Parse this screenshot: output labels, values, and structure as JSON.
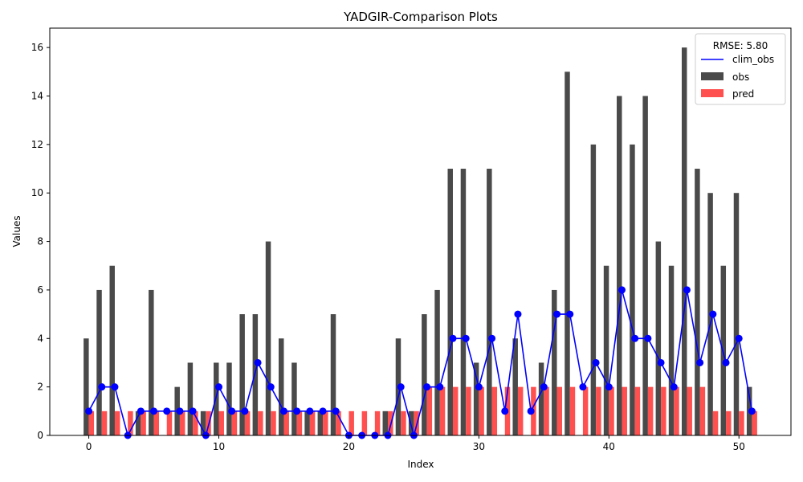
{
  "chart_data": {
    "type": "bar",
    "title": "YADGIR-Comparison Plots",
    "xlabel": "Index",
    "ylabel": "Values",
    "xlim": [
      -3,
      54
    ],
    "ylim": [
      0,
      16.8
    ],
    "x_ticks": [
      0,
      10,
      20,
      30,
      40,
      50
    ],
    "y_ticks": [
      0,
      2,
      4,
      6,
      8,
      10,
      12,
      14,
      16
    ],
    "legend": {
      "title": "RMSE: 5.80",
      "position": "top-right",
      "entries": [
        "clim_obs",
        "obs",
        "pred"
      ]
    },
    "colors": {
      "clim_obs": "#0000ff",
      "obs": "#4a4a4a",
      "pred": "#ff5050"
    },
    "x": [
      0,
      1,
      2,
      3,
      4,
      5,
      6,
      7,
      8,
      9,
      10,
      11,
      12,
      13,
      14,
      15,
      16,
      17,
      18,
      19,
      20,
      21,
      22,
      23,
      24,
      25,
      26,
      27,
      28,
      29,
      30,
      31,
      32,
      33,
      34,
      35,
      36,
      37,
      38,
      39,
      40,
      41,
      42,
      43,
      44,
      45,
      46,
      47,
      48,
      49,
      50,
      51
    ],
    "series": [
      {
        "name": "obs",
        "type": "bar",
        "values": [
          4,
          6,
          7,
          0,
          1,
          6,
          0,
          2,
          3,
          1,
          3,
          3,
          5,
          5,
          8,
          4,
          3,
          1,
          1,
          5,
          0,
          0,
          0,
          1,
          4,
          1,
          5,
          6,
          11,
          11,
          3,
          11,
          0,
          4,
          0,
          3,
          6,
          15,
          0,
          12,
          7,
          14,
          12,
          14,
          8,
          7,
          16,
          11,
          10,
          7,
          10,
          2
        ]
      },
      {
        "name": "pred",
        "type": "bar",
        "values": [
          1,
          1,
          1,
          1,
          1,
          1,
          1,
          1,
          1,
          1,
          1,
          1,
          1,
          1,
          1,
          1,
          1,
          1,
          1,
          1,
          1,
          1,
          1,
          1,
          1,
          1,
          2,
          2,
          2,
          2,
          2,
          2,
          2,
          2,
          2,
          2,
          2,
          2,
          2,
          2,
          2,
          2,
          2,
          2,
          2,
          2,
          2,
          2,
          1,
          1,
          1,
          1
        ]
      },
      {
        "name": "clim_obs",
        "type": "line",
        "values": [
          1,
          2,
          2,
          0,
          1,
          1,
          1,
          1,
          1,
          0,
          2,
          1,
          1,
          3,
          2,
          1,
          1,
          1,
          1,
          1,
          0,
          0,
          0,
          0,
          2,
          0,
          2,
          2,
          4,
          4,
          2,
          4,
          1,
          5,
          1,
          2,
          5,
          5,
          2,
          3,
          2,
          6,
          4,
          4,
          3,
          2,
          6,
          3,
          5,
          3,
          4,
          1
        ]
      }
    ]
  }
}
